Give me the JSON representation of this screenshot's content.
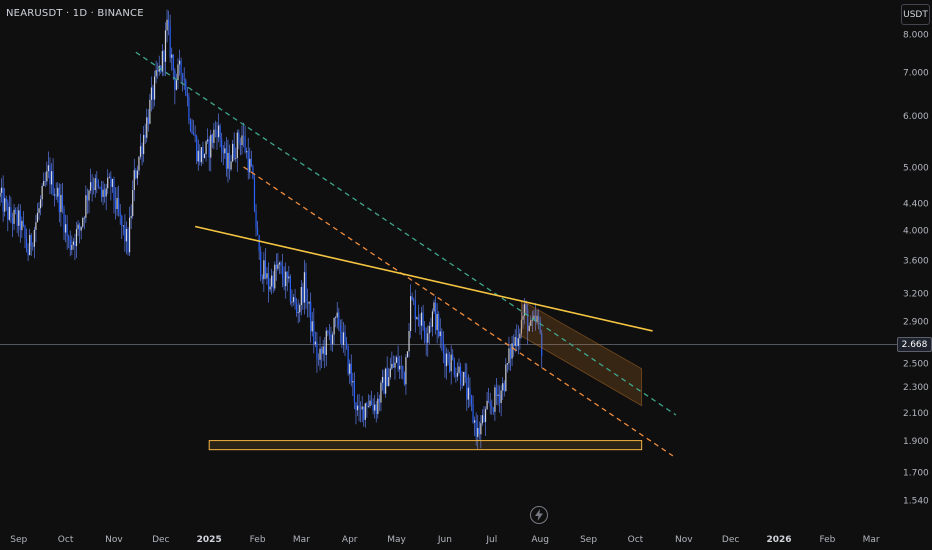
{
  "header": {
    "symbol_line": "NEARUSDT · 1D · BINANCE",
    "currency": "USDT"
  },
  "current_price": {
    "label": "2.668",
    "value": 2.668
  },
  "colors": {
    "background": "#0f0f0f",
    "candle_body": "#2962ff",
    "candle_wick": "#5b7be8",
    "trendline_solid": "#f5c542",
    "trendline_dash_orange": "#f08c3c",
    "trendline_dash_teal": "#3fa58c",
    "support_zone": "#f5b342",
    "projection_box": "#c87a2a",
    "axis_text": "#b2b5be"
  },
  "icons": {
    "replay": "lightning-icon"
  },
  "chart_data": {
    "type": "candlestick",
    "scale": "log",
    "ylim": [
      1.45,
      8.6
    ],
    "y_ticks": [
      8.0,
      7.0,
      6.0,
      5.0,
      4.4,
      4.0,
      3.6,
      3.2,
      2.9,
      2.5,
      2.3,
      2.1,
      1.9,
      1.7,
      1.54
    ],
    "y_tick_labels": [
      "8.000",
      "7.000",
      "6.000",
      "5.000",
      "4.400",
      "4.000",
      "3.600",
      "3.200",
      "2.900",
      "2.500",
      "2.300",
      "2.100",
      "1.900",
      "1.700",
      "1.540"
    ],
    "x_range": [
      "2024-08-20",
      "2026-03-15"
    ],
    "x_ticks": [
      {
        "label": "Sep",
        "date": "2024-09-01"
      },
      {
        "label": "Oct",
        "date": "2024-10-01"
      },
      {
        "label": "Nov",
        "date": "2024-11-01"
      },
      {
        "label": "Dec",
        "date": "2024-12-01"
      },
      {
        "label": "2025",
        "date": "2025-01-01"
      },
      {
        "label": "Feb",
        "date": "2025-02-01"
      },
      {
        "label": "Mar",
        "date": "2025-03-01"
      },
      {
        "label": "Apr",
        "date": "2025-04-01"
      },
      {
        "label": "May",
        "date": "2025-05-01"
      },
      {
        "label": "Jun",
        "date": "2025-06-01"
      },
      {
        "label": "Jul",
        "date": "2025-07-01"
      },
      {
        "label": "Aug",
        "date": "2025-08-01"
      },
      {
        "label": "Sep",
        "date": "2025-09-01"
      },
      {
        "label": "Oct",
        "date": "2025-10-01"
      },
      {
        "label": "Nov",
        "date": "2025-11-01"
      },
      {
        "label": "Dec",
        "date": "2025-12-01"
      },
      {
        "label": "2026",
        "date": "2026-01-01"
      },
      {
        "label": "Feb",
        "date": "2026-02-01"
      },
      {
        "label": "Mar",
        "date": "2026-03-01"
      }
    ],
    "bold_x_ticks": [
      "2025",
      "2026"
    ],
    "price_path": [
      [
        "2024-08-20",
        4.5
      ],
      [
        "2024-08-26",
        4.2
      ],
      [
        "2024-09-02",
        4.1
      ],
      [
        "2024-09-07",
        3.7
      ],
      [
        "2024-09-14",
        4.3
      ],
      [
        "2024-09-20",
        4.9
      ],
      [
        "2024-09-28",
        4.4
      ],
      [
        "2024-10-03",
        3.8
      ],
      [
        "2024-10-10",
        4.0
      ],
      [
        "2024-10-17",
        4.8
      ],
      [
        "2024-10-24",
        4.5
      ],
      [
        "2024-10-30",
        4.7
      ],
      [
        "2024-11-05",
        4.1
      ],
      [
        "2024-11-10",
        3.8
      ],
      [
        "2024-11-14",
        4.8
      ],
      [
        "2024-11-20",
        5.6
      ],
      [
        "2024-11-26",
        6.5
      ],
      [
        "2024-12-02",
        7.3
      ],
      [
        "2024-12-05",
        8.2
      ],
      [
        "2024-12-10",
        6.8
      ],
      [
        "2024-12-15",
        7.1
      ],
      [
        "2024-12-20",
        5.9
      ],
      [
        "2024-12-25",
        5.2
      ],
      [
        "2024-12-31",
        5.3
      ],
      [
        "2025-01-06",
        5.8
      ],
      [
        "2025-01-12",
        5.0
      ],
      [
        "2025-01-18",
        5.4
      ],
      [
        "2025-01-22",
        5.6
      ],
      [
        "2025-01-28",
        4.9
      ],
      [
        "2025-02-02",
        3.6
      ],
      [
        "2025-02-08",
        3.3
      ],
      [
        "2025-02-14",
        3.5
      ],
      [
        "2025-02-20",
        3.3
      ],
      [
        "2025-02-26",
        3.0
      ],
      [
        "2025-03-03",
        3.3
      ],
      [
        "2025-03-08",
        2.8
      ],
      [
        "2025-03-12",
        2.5
      ],
      [
        "2025-03-17",
        2.7
      ],
      [
        "2025-03-25",
        2.9
      ],
      [
        "2025-03-31",
        2.5
      ],
      [
        "2025-04-07",
        2.05
      ],
      [
        "2025-04-12",
        2.2
      ],
      [
        "2025-04-18",
        2.15
      ],
      [
        "2025-04-25",
        2.4
      ],
      [
        "2025-05-01",
        2.5
      ],
      [
        "2025-05-06",
        2.4
      ],
      [
        "2025-05-10",
        3.1
      ],
      [
        "2025-05-14",
        3.0
      ],
      [
        "2025-05-20",
        2.8
      ],
      [
        "2025-05-25",
        3.0
      ],
      [
        "2025-05-31",
        2.6
      ],
      [
        "2025-06-06",
        2.5
      ],
      [
        "2025-06-12",
        2.4
      ],
      [
        "2025-06-17",
        2.15
      ],
      [
        "2025-06-22",
        1.95
      ],
      [
        "2025-06-28",
        2.1
      ],
      [
        "2025-07-03",
        2.2
      ],
      [
        "2025-07-08",
        2.3
      ],
      [
        "2025-07-13",
        2.6
      ],
      [
        "2025-07-18",
        2.8
      ],
      [
        "2025-07-22",
        3.0
      ],
      [
        "2025-07-26",
        2.8
      ],
      [
        "2025-07-30",
        2.9
      ],
      [
        "2025-08-02",
        2.66
      ]
    ],
    "drawings": {
      "yellow_resistance": {
        "from": [
          "2024-12-23",
          4.05
        ],
        "to": [
          "2025-10-12",
          2.8
        ]
      },
      "orange_dashed_trendline": {
        "from": [
          "2025-01-23",
          5.0
        ],
        "to": [
          "2025-10-25",
          1.8
        ]
      },
      "teal_dashed_trendline": {
        "from": [
          "2024-11-15",
          7.5
        ],
        "to": [
          "2025-10-27",
          2.08
        ]
      },
      "support_zone": {
        "from_date": "2025-01-01",
        "to_date": "2025-10-05",
        "low": 1.84,
        "high": 1.9
      },
      "projection_channel": {
        "upper": {
          "from": [
            "2025-07-20",
            3.12
          ],
          "to": [
            "2025-10-05",
            2.45
          ]
        },
        "lower": {
          "from": [
            "2025-07-20",
            2.75
          ],
          "to": [
            "2025-10-05",
            2.15
          ]
        }
      }
    }
  }
}
